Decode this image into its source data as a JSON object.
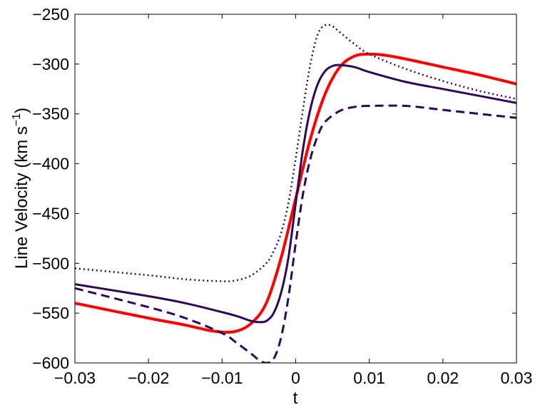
{
  "chart_data": {
    "type": "line",
    "title": "",
    "xlabel": "t",
    "ylabel": {
      "main": "Line Velocity (km s",
      "superscript": "−1",
      "close": ")"
    },
    "xlim": [
      -0.03,
      0.03
    ],
    "ylim": [
      -600,
      -250
    ],
    "xticks": [
      -0.03,
      -0.02,
      -0.01,
      0,
      0.01,
      0.02,
      0.03
    ],
    "xtick_labels": [
      "−0.03",
      "−0.02",
      "−0.01",
      "0",
      "0.01",
      "0.02",
      "0.03"
    ],
    "yticks": [
      -600,
      -550,
      -500,
      -450,
      -400,
      -350,
      -300,
      -250
    ],
    "ytick_labels": [
      "−600",
      "−550",
      "−500",
      "−450",
      "−400",
      "−350",
      "−300",
      "−250"
    ],
    "grid": false,
    "legend": "none",
    "series": [
      {
        "color": "#ff0000",
        "style": "solid",
        "x": [
          -0.03,
          -0.02,
          -0.015,
          -0.012,
          -0.01,
          -0.008,
          -0.006,
          -0.004,
          -0.002,
          0,
          0.002,
          0.004,
          0.006,
          0.008,
          0.01,
          0.012,
          0.015,
          0.02,
          0.025,
          0.03
        ],
        "y": [
          -540,
          -555,
          -562,
          -567,
          -569,
          -568,
          -560,
          -540,
          -495,
          -435,
          -375,
          -330,
          -303,
          -292,
          -290,
          -291,
          -295,
          -303,
          -311,
          -320
        ]
      },
      {
        "color": "#2d0a55",
        "style": "solid",
        "x": [
          -0.03,
          -0.02,
          -0.015,
          -0.01,
          -0.008,
          -0.006,
          -0.005,
          -0.004,
          -0.003,
          -0.002,
          -0.001,
          0,
          0.001,
          0.002,
          0.003,
          0.004,
          0.005,
          0.006,
          0.008,
          0.01,
          0.015,
          0.02,
          0.025,
          0.03
        ],
        "y": [
          -521,
          -533,
          -540,
          -549,
          -553,
          -558,
          -559,
          -558,
          -550,
          -530,
          -495,
          -440,
          -385,
          -345,
          -320,
          -307,
          -302,
          -301,
          -303,
          -308,
          -318,
          -325,
          -332,
          -339
        ]
      },
      {
        "color": "#2d0a55",
        "style": "dashed",
        "x": [
          -0.03,
          -0.02,
          -0.015,
          -0.01,
          -0.008,
          -0.006,
          -0.005,
          -0.004,
          -0.003,
          -0.002,
          -0.001,
          0,
          0.001,
          0.002,
          0.003,
          0.004,
          0.006,
          0.008,
          0.01,
          0.015,
          0.02,
          0.025,
          0.03
        ],
        "y": [
          -525,
          -544,
          -555,
          -570,
          -580,
          -591,
          -597,
          -600,
          -596,
          -575,
          -535,
          -480,
          -430,
          -395,
          -372,
          -358,
          -347,
          -343,
          -342,
          -342,
          -346,
          -350,
          -354
        ]
      },
      {
        "color": "#2d0a55",
        "style": "dotted",
        "x": [
          -0.03,
          -0.02,
          -0.015,
          -0.01,
          -0.008,
          -0.006,
          -0.004,
          -0.003,
          -0.002,
          -0.001,
          0,
          0.001,
          0.002,
          0.003,
          0.004,
          0.005,
          0.006,
          0.008,
          0.01,
          0.015,
          0.02,
          0.025,
          0.03
        ],
        "y": [
          -505,
          -512,
          -516,
          -518,
          -517,
          -512,
          -500,
          -488,
          -470,
          -440,
          -395,
          -345,
          -300,
          -270,
          -261,
          -262,
          -268,
          -280,
          -290,
          -305,
          -317,
          -327,
          -335
        ]
      }
    ]
  }
}
